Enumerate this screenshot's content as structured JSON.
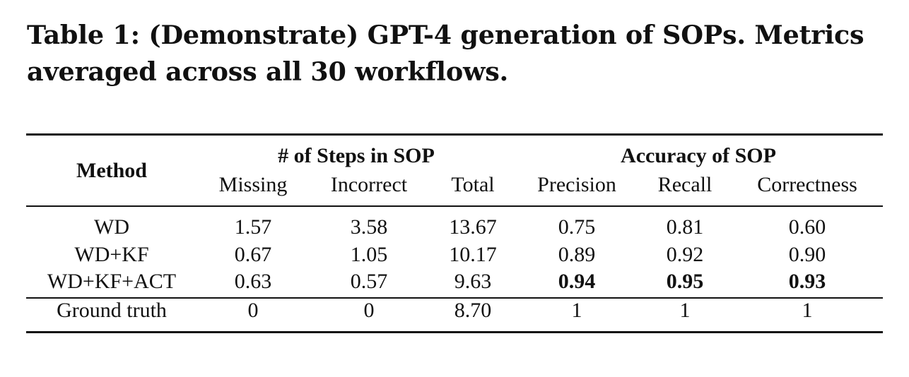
{
  "caption": {
    "line1": "Table 1: (Demonstrate) GPT-4 generation of SOPs. Metrics",
    "line2": "averaged across all 30 workflows."
  },
  "header": {
    "method": "Method",
    "group_steps": "# of Steps in SOP",
    "group_accuracy": "Accuracy of SOP",
    "columns": [
      "Missing",
      "Incorrect",
      "Total",
      "Precision",
      "Recall",
      "Correctness"
    ]
  },
  "rows": [
    {
      "method": "WD",
      "values": [
        "1.57",
        "3.58",
        "13.67",
        "0.75",
        "0.81",
        "0.60"
      ]
    },
    {
      "method": "WD+KF",
      "values": [
        "0.67",
        "1.05",
        "10.17",
        "0.89",
        "0.92",
        "0.90"
      ]
    },
    {
      "method": "WD+KF+ACT",
      "values": [
        "0.63",
        "0.57",
        "9.63",
        "0.94",
        "0.95",
        "0.93"
      ]
    },
    {
      "method": "Ground truth",
      "values": [
        "0",
        "0",
        "8.70",
        "1",
        "1",
        "1"
      ]
    }
  ]
}
